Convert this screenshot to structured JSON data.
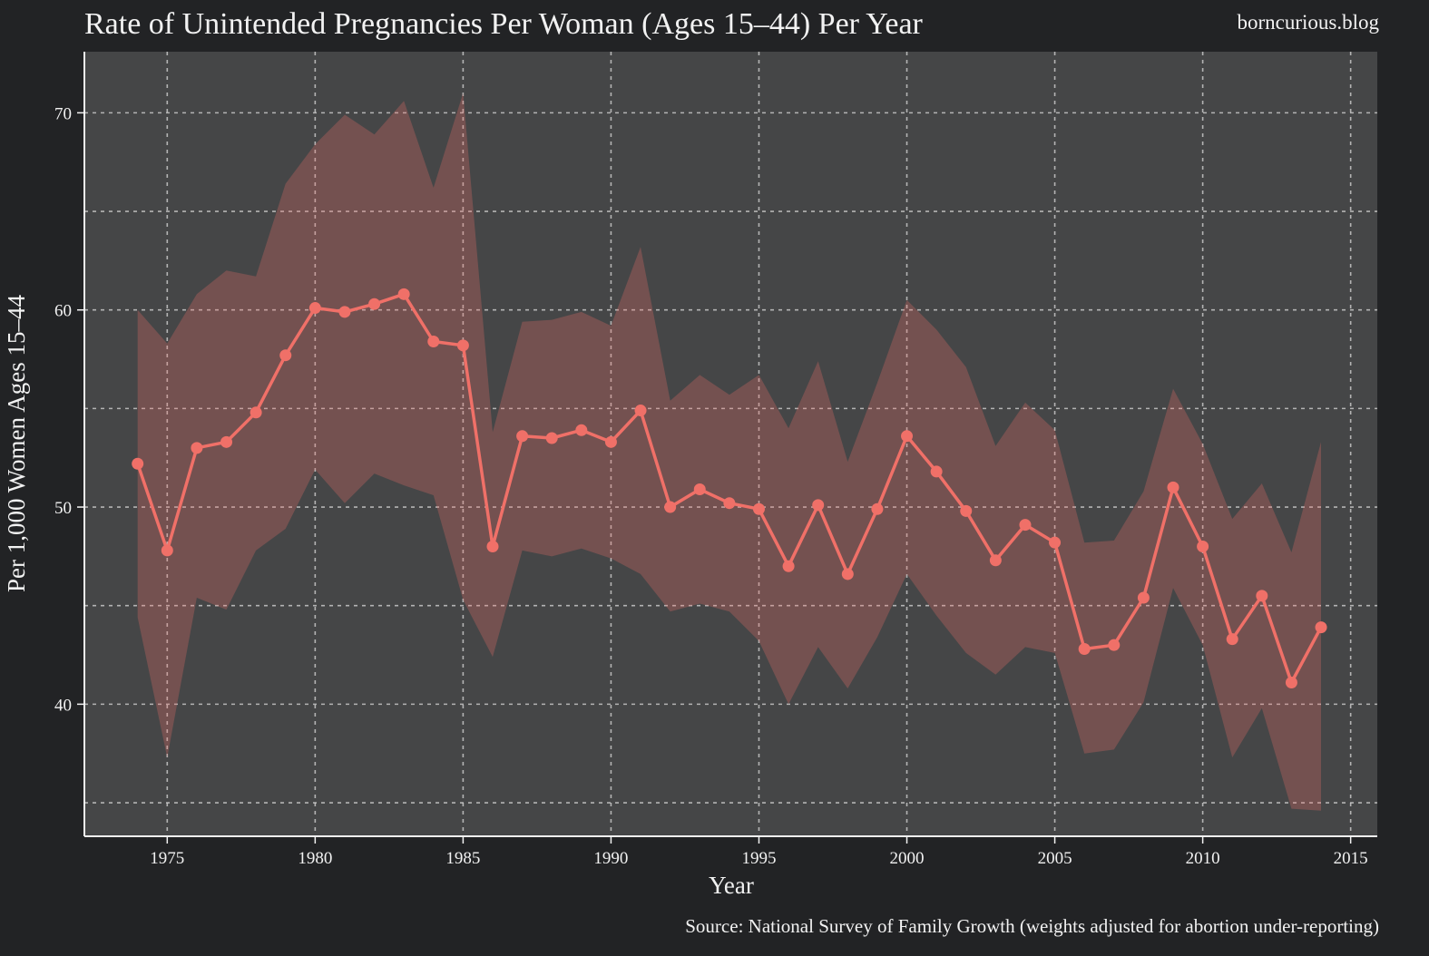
{
  "chart_data": {
    "type": "line",
    "title": "Rate of Unintended Pregnancies Per Woman (Ages 15–44) Per Year",
    "watermark": "borncurious.blog",
    "xlabel": "Year",
    "ylabel": "Per 1,000 Women Ages 15–44",
    "source": "Source: National Survey of Family Growth (weights adjusted for abortion under-reporting)",
    "xlim": [
      1972.2,
      2015.9
    ],
    "ylim": [
      33.3,
      73.1
    ],
    "xticks": [
      1975,
      1980,
      1985,
      1990,
      1995,
      2000,
      2005,
      2010,
      2015
    ],
    "yticks": [
      40,
      50,
      60,
      70
    ],
    "ygrid": [
      35,
      40,
      45,
      50,
      55,
      60,
      65,
      70
    ],
    "grid": true,
    "colors": {
      "background": "#222325",
      "plot_background": "#454647",
      "line": "#f07068",
      "band": "#f07068",
      "grid": "#c8c8c8"
    },
    "x": [
      1974,
      1975,
      1976,
      1977,
      1978,
      1979,
      1980,
      1981,
      1982,
      1983,
      1984,
      1985,
      1986,
      1987,
      1988,
      1989,
      1990,
      1991,
      1992,
      1993,
      1994,
      1995,
      1996,
      1997,
      1998,
      1999,
      2000,
      2001,
      2002,
      2003,
      2004,
      2005,
      2006,
      2007,
      2008,
      2009,
      2010,
      2011,
      2012,
      2013,
      2014
    ],
    "series": [
      {
        "values": [
          52.2,
          47.8,
          53.0,
          53.3,
          54.8,
          57.7,
          60.1,
          59.9,
          60.3,
          60.8,
          58.4,
          58.2,
          48.0,
          53.6,
          53.5,
          53.9,
          53.3,
          54.9,
          50.0,
          50.9,
          50.2,
          49.9,
          47.0,
          50.1,
          46.6,
          49.9,
          53.6,
          51.8,
          49.8,
          47.3,
          49.1,
          48.2,
          42.8,
          43.0,
          45.4,
          51.0,
          48.0,
          43.3,
          45.5,
          41.1,
          43.9
        ],
        "lower": [
          44.4,
          37.3,
          45.4,
          44.8,
          47.8,
          48.9,
          51.9,
          50.2,
          51.7,
          51.1,
          50.6,
          45.3,
          42.4,
          47.8,
          47.5,
          47.9,
          47.4,
          46.6,
          44.7,
          45.1,
          44.7,
          43.2,
          40.0,
          42.9,
          40.8,
          43.4,
          46.6,
          44.5,
          42.6,
          41.5,
          42.9,
          42.6,
          37.5,
          37.7,
          40.1,
          45.9,
          43.0,
          37.3,
          39.8,
          34.7,
          34.6
        ],
        "upper": [
          60.0,
          58.3,
          60.8,
          62.0,
          61.7,
          66.4,
          68.4,
          69.9,
          68.9,
          70.6,
          66.2,
          71.0,
          53.8,
          59.4,
          59.5,
          59.9,
          59.2,
          63.2,
          55.4,
          56.7,
          55.7,
          56.7,
          54.0,
          57.4,
          52.3,
          56.3,
          60.5,
          59.0,
          57.1,
          53.1,
          55.3,
          53.9,
          48.2,
          48.3,
          50.8,
          56.0,
          53.2,
          49.4,
          51.2,
          47.7,
          53.3
        ]
      }
    ]
  }
}
